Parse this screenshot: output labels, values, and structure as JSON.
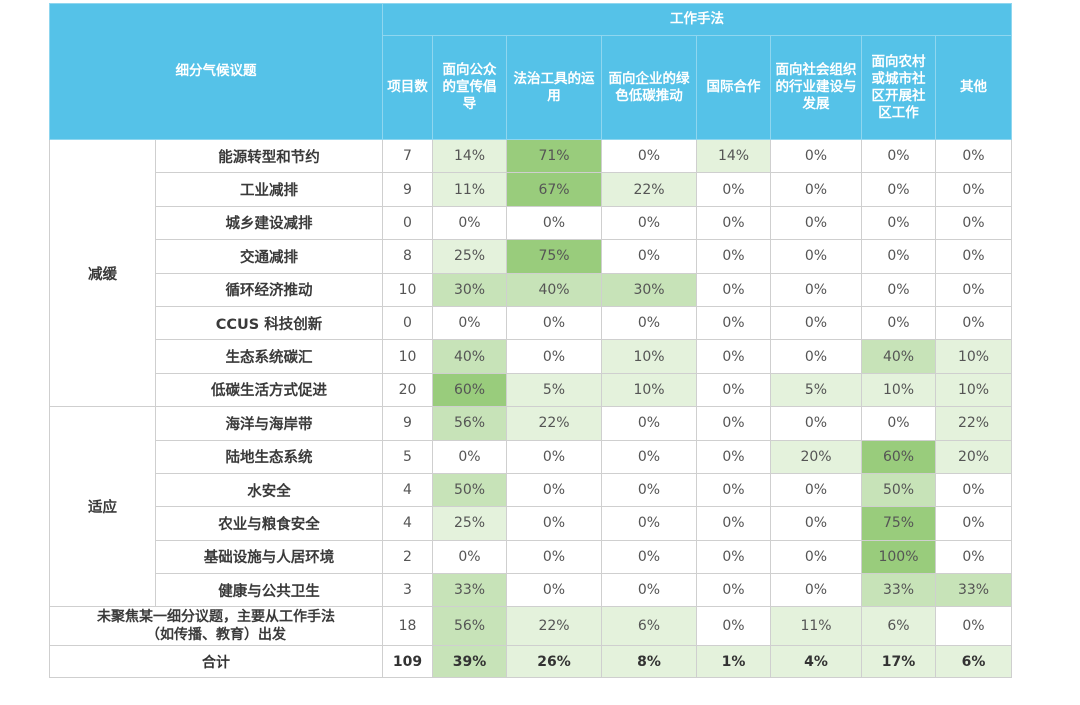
{
  "table": {
    "header": {
      "topic_label": "细分气候议题",
      "methods_label": "工作手法",
      "count_label": "项目数",
      "columns": [
        "面向公众的宣传倡导",
        "法治工具的运用",
        "面向企业的绿色低碳推动",
        "国际合作",
        "面向社会组织的行业建设与发展",
        "面向农村或城市社区开展社区工作",
        "其他"
      ]
    },
    "groups": [
      {
        "name": "减缓",
        "rows": [
          {
            "topic": "能源转型和节约",
            "count": "7",
            "values": [
              "14%",
              "71%",
              "0%",
              "14%",
              "0%",
              "0%",
              "0%"
            ]
          },
          {
            "topic": "工业减排",
            "count": "9",
            "values": [
              "11%",
              "67%",
              "22%",
              "0%",
              "0%",
              "0%",
              "0%"
            ]
          },
          {
            "topic": "城乡建设减排",
            "count": "0",
            "values": [
              "0%",
              "0%",
              "0%",
              "0%",
              "0%",
              "0%",
              "0%"
            ]
          },
          {
            "topic": "交通减排",
            "count": "8",
            "values": [
              "25%",
              "75%",
              "0%",
              "0%",
              "0%",
              "0%",
              "0%"
            ]
          },
          {
            "topic": "循环经济推动",
            "count": "10",
            "values": [
              "30%",
              "40%",
              "30%",
              "0%",
              "0%",
              "0%",
              "0%"
            ]
          },
          {
            "topic": "CCUS 科技创新",
            "count": "0",
            "values": [
              "0%",
              "0%",
              "0%",
              "0%",
              "0%",
              "0%",
              "0%"
            ]
          },
          {
            "topic": "生态系统碳汇",
            "count": "10",
            "values": [
              "40%",
              "0%",
              "10%",
              "0%",
              "0%",
              "40%",
              "10%"
            ]
          },
          {
            "topic": "低碳生活方式促进",
            "count": "20",
            "values": [
              "60%",
              "5%",
              "10%",
              "0%",
              "5%",
              "10%",
              "10%"
            ]
          }
        ]
      },
      {
        "name": "适应",
        "rows": [
          {
            "topic": "海洋与海岸带",
            "count": "9",
            "values": [
              "56%",
              "22%",
              "0%",
              "0%",
              "0%",
              "0%",
              "22%"
            ]
          },
          {
            "topic": "陆地生态系统",
            "count": "5",
            "values": [
              "0%",
              "0%",
              "0%",
              "0%",
              "20%",
              "60%",
              "20%"
            ]
          },
          {
            "topic": "水安全",
            "count": "4",
            "values": [
              "50%",
              "0%",
              "0%",
              "0%",
              "0%",
              "50%",
              "0%"
            ]
          },
          {
            "topic": "农业与粮食安全",
            "count": "4",
            "values": [
              "25%",
              "0%",
              "0%",
              "0%",
              "0%",
              "75%",
              "0%"
            ]
          },
          {
            "topic": "基础设施与人居环境",
            "count": "2",
            "values": [
              "0%",
              "0%",
              "0%",
              "0%",
              "0%",
              "100%",
              "0%"
            ]
          },
          {
            "topic": "健康与公共卫生",
            "count": "3",
            "values": [
              "33%",
              "0%",
              "0%",
              "0%",
              "0%",
              "33%",
              "33%"
            ]
          }
        ]
      }
    ],
    "unfocused": {
      "topic_line1": "未聚焦某一细分议题，主要从工作手法",
      "topic_line2": "（如传播、教育）出发",
      "count": "18",
      "values": [
        "56%",
        "22%",
        "6%",
        "0%",
        "11%",
        "6%",
        "0%"
      ]
    },
    "total": {
      "label": "合计",
      "count": "109",
      "values": [
        "39%",
        "26%",
        "8%",
        "1%",
        "4%",
        "17%",
        "6%"
      ]
    },
    "colors": {
      "header": "#55c2e8",
      "shade_light": "#e4f2dc",
      "shade_mid": "#c7e3b8",
      "shade_dark": "#99cc7c"
    }
  }
}
